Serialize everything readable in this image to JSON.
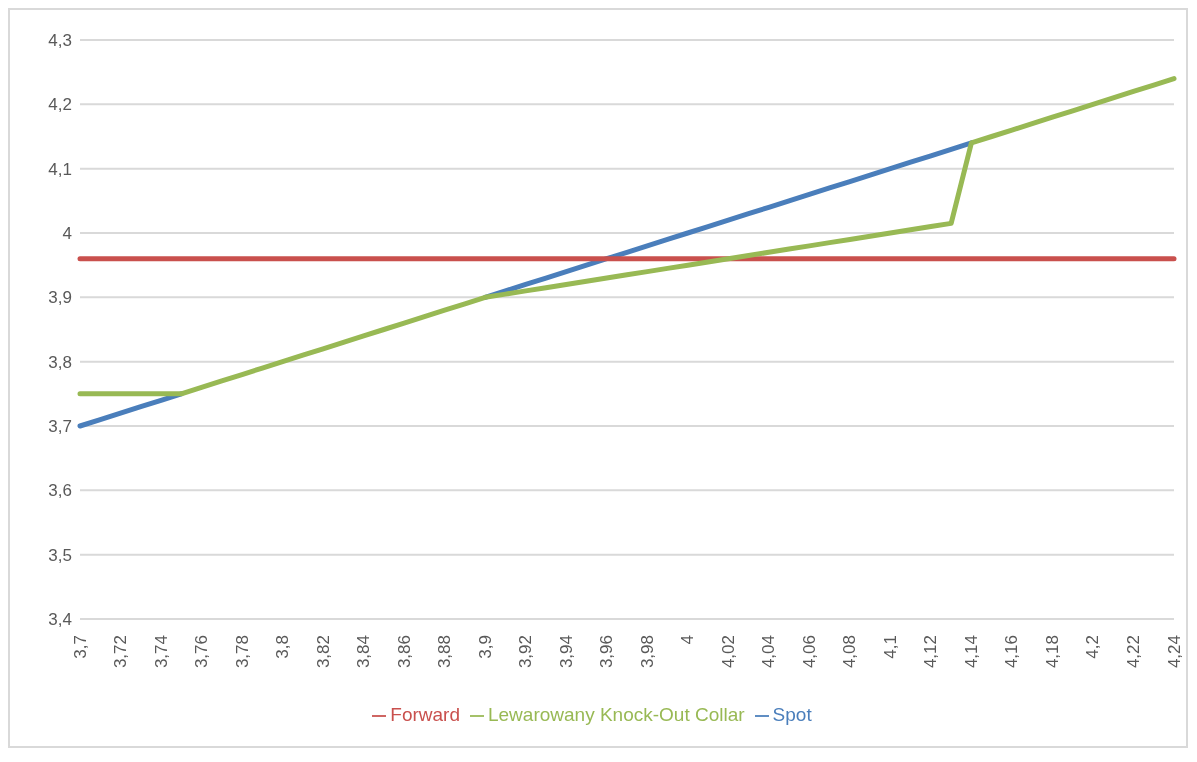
{
  "chart_data": {
    "type": "line",
    "categories": [
      "3,7",
      null,
      "3,72",
      null,
      "3,74",
      null,
      "3,76",
      null,
      "3,78",
      null,
      "3,8",
      null,
      "3,82",
      null,
      "3,84",
      null,
      "3,86",
      null,
      "3,88",
      null,
      "3,9",
      null,
      "3,92",
      null,
      "3,94",
      null,
      "3,96",
      null,
      "3,98",
      null,
      "4",
      null,
      "4,02",
      null,
      "4,04",
      null,
      "4,06",
      null,
      "4,08",
      null,
      "4,1",
      null,
      "4,12",
      null,
      "4,14",
      null,
      "4,16",
      null,
      "4,18",
      null,
      "4,2",
      null,
      "4,22",
      null,
      "4,24"
    ],
    "series": [
      {
        "name": "Spot",
        "color": "#4a7ebb",
        "values": [
          3.7,
          3.71,
          3.72,
          3.73,
          3.74,
          3.75,
          null,
          null,
          null,
          null,
          null,
          null,
          null,
          null,
          null,
          null,
          null,
          null,
          null,
          null,
          3.9,
          3.91,
          3.92,
          3.93,
          3.94,
          3.95,
          3.96,
          3.97,
          3.98,
          3.99,
          4,
          4.01,
          4.02,
          4.03,
          4.04,
          4.05,
          4.06,
          4.07,
          4.08,
          4.09,
          4.1,
          4.11,
          4.12,
          4.13,
          4.14,
          null,
          null,
          null,
          null,
          null,
          null,
          null,
          null,
          null,
          null
        ]
      },
      {
        "name": "Forward",
        "color": "#c9504d",
        "values": [
          3.96,
          3.96,
          3.96,
          3.96,
          3.96,
          3.96,
          3.96,
          3.96,
          3.96,
          3.96,
          3.96,
          3.96,
          3.96,
          3.96,
          3.96,
          3.96,
          3.96,
          3.96,
          3.96,
          3.96,
          3.96,
          3.96,
          3.96,
          3.96,
          3.96,
          3.96,
          3.96,
          3.96,
          3.96,
          3.96,
          3.96,
          3.96,
          3.96,
          3.96,
          3.96,
          3.96,
          3.96,
          3.96,
          3.96,
          3.96,
          3.96,
          3.96,
          3.96,
          3.96,
          3.96,
          3.96,
          3.96,
          3.96,
          3.96,
          3.96,
          3.96,
          3.96,
          3.96,
          3.96,
          3.96
        ]
      },
      {
        "name": "Lewarowany Knock-Out Collar",
        "color": "#98b954",
        "values": [
          3.75,
          3.75,
          3.75,
          3.75,
          3.75,
          3.75,
          3.76,
          3.77,
          3.78,
          3.79,
          3.8,
          3.81,
          3.82,
          3.83,
          3.84,
          3.85,
          3.86,
          3.87,
          3.88,
          3.89,
          3.9,
          3.905,
          3.91,
          3.915,
          3.92,
          3.925,
          3.93,
          3.935,
          3.94,
          3.945,
          3.95,
          3.955,
          3.96,
          3.965,
          3.97,
          3.975,
          3.98,
          3.985,
          3.99,
          3.995,
          4,
          4.005,
          4.01,
          4.015,
          4.14,
          4.15,
          4.16,
          4.17,
          4.18,
          4.19,
          4.2,
          4.21,
          4.22,
          4.23,
          4.24
        ]
      }
    ],
    "ylim": [
      3.4,
      4.3
    ],
    "yticks": [
      {
        "value": 3.4,
        "label": "3,4"
      },
      {
        "value": 3.5,
        "label": "3,5"
      },
      {
        "value": 3.6,
        "label": "3,6"
      },
      {
        "value": 3.7,
        "label": "3,7"
      },
      {
        "value": 3.8,
        "label": "3,8"
      },
      {
        "value": 3.9,
        "label": "3,9"
      },
      4,
      {
        "value": 4.1,
        "label": "4,1"
      },
      {
        "value": 4.2,
        "label": "4,2"
      },
      {
        "value": 4.3,
        "label": "4,3"
      }
    ],
    "grid": "y",
    "legend": "bottom",
    "marker": "none",
    "line_style": "solid"
  }
}
